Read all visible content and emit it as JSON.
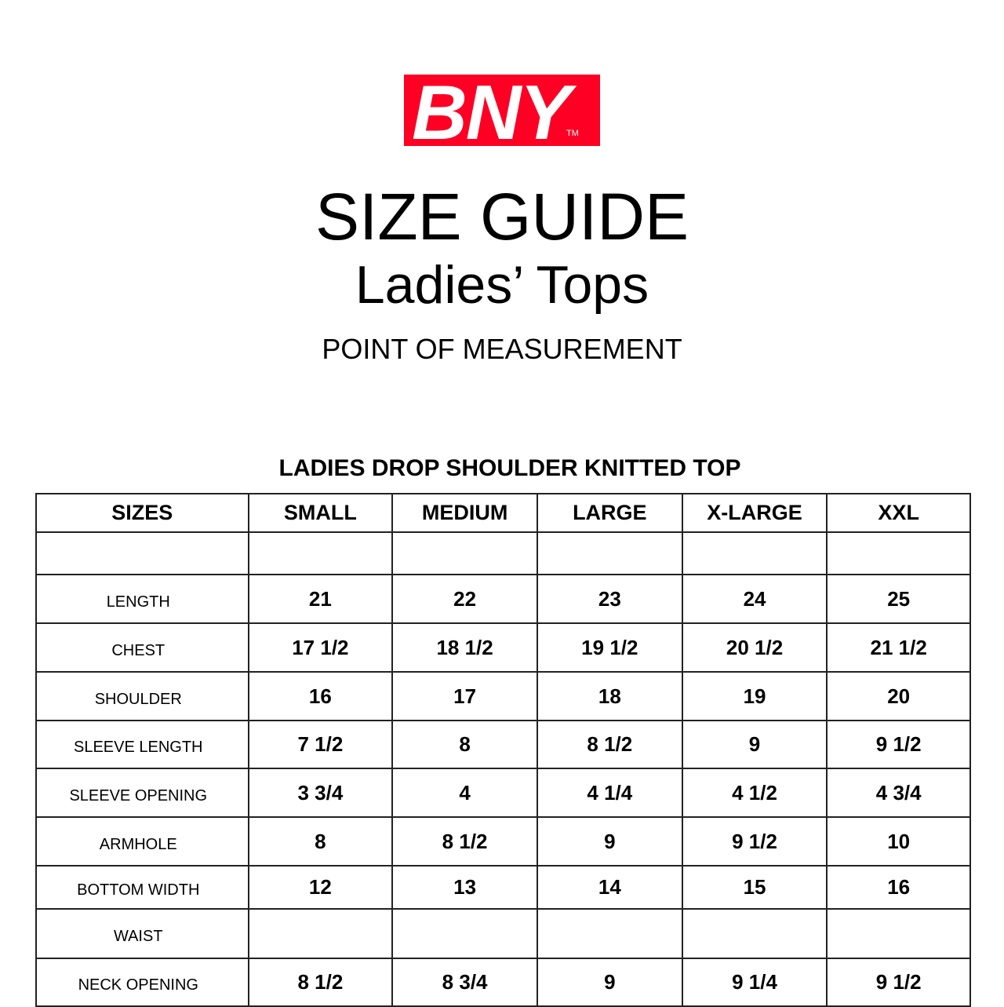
{
  "logo": {
    "text": "BNY",
    "tm": "TM",
    "color": "#fe0024"
  },
  "title": "SIZE GUIDE",
  "subtitle": "Ladies’ Tops",
  "section": "POINT OF MEASUREMENT",
  "table_title": "LADIES DROP SHOULDER KNITTED TOP",
  "headers": [
    "SIZES",
    "SMALL",
    "MEDIUM",
    "LARGE",
    "X-LARGE",
    "XXL"
  ],
  "rows": [
    [
      "",
      "",
      "",
      "",
      "",
      ""
    ],
    [
      "LENGTH",
      "21",
      "22",
      "23",
      "24",
      "25"
    ],
    [
      "CHEST",
      "17 1/2",
      "18 1/2",
      "19 1/2",
      "20 1/2",
      "21 1/2"
    ],
    [
      "SHOULDER",
      "16",
      "17",
      "18",
      "19",
      "20"
    ],
    [
      "SLEEVE LENGTH",
      "7 1/2",
      "8",
      "8 1/2",
      "9",
      "9 1/2"
    ],
    [
      "SLEEVE OPENING",
      "3 3/4",
      "4",
      "4 1/4",
      "4 1/2",
      "4 3/4"
    ],
    [
      "ARMHOLE",
      "8",
      "8 1/2",
      "9",
      "9 1/2",
      "10"
    ],
    [
      "BOTTOM WIDTH",
      "12",
      "13",
      "14",
      "15",
      "16"
    ],
    [
      "WAIST",
      "",
      "",
      "",
      "",
      ""
    ],
    [
      "NECK OPENING",
      "8 1/2",
      "8 3/4",
      "9",
      "9 1/4",
      "9 1/2"
    ]
  ]
}
